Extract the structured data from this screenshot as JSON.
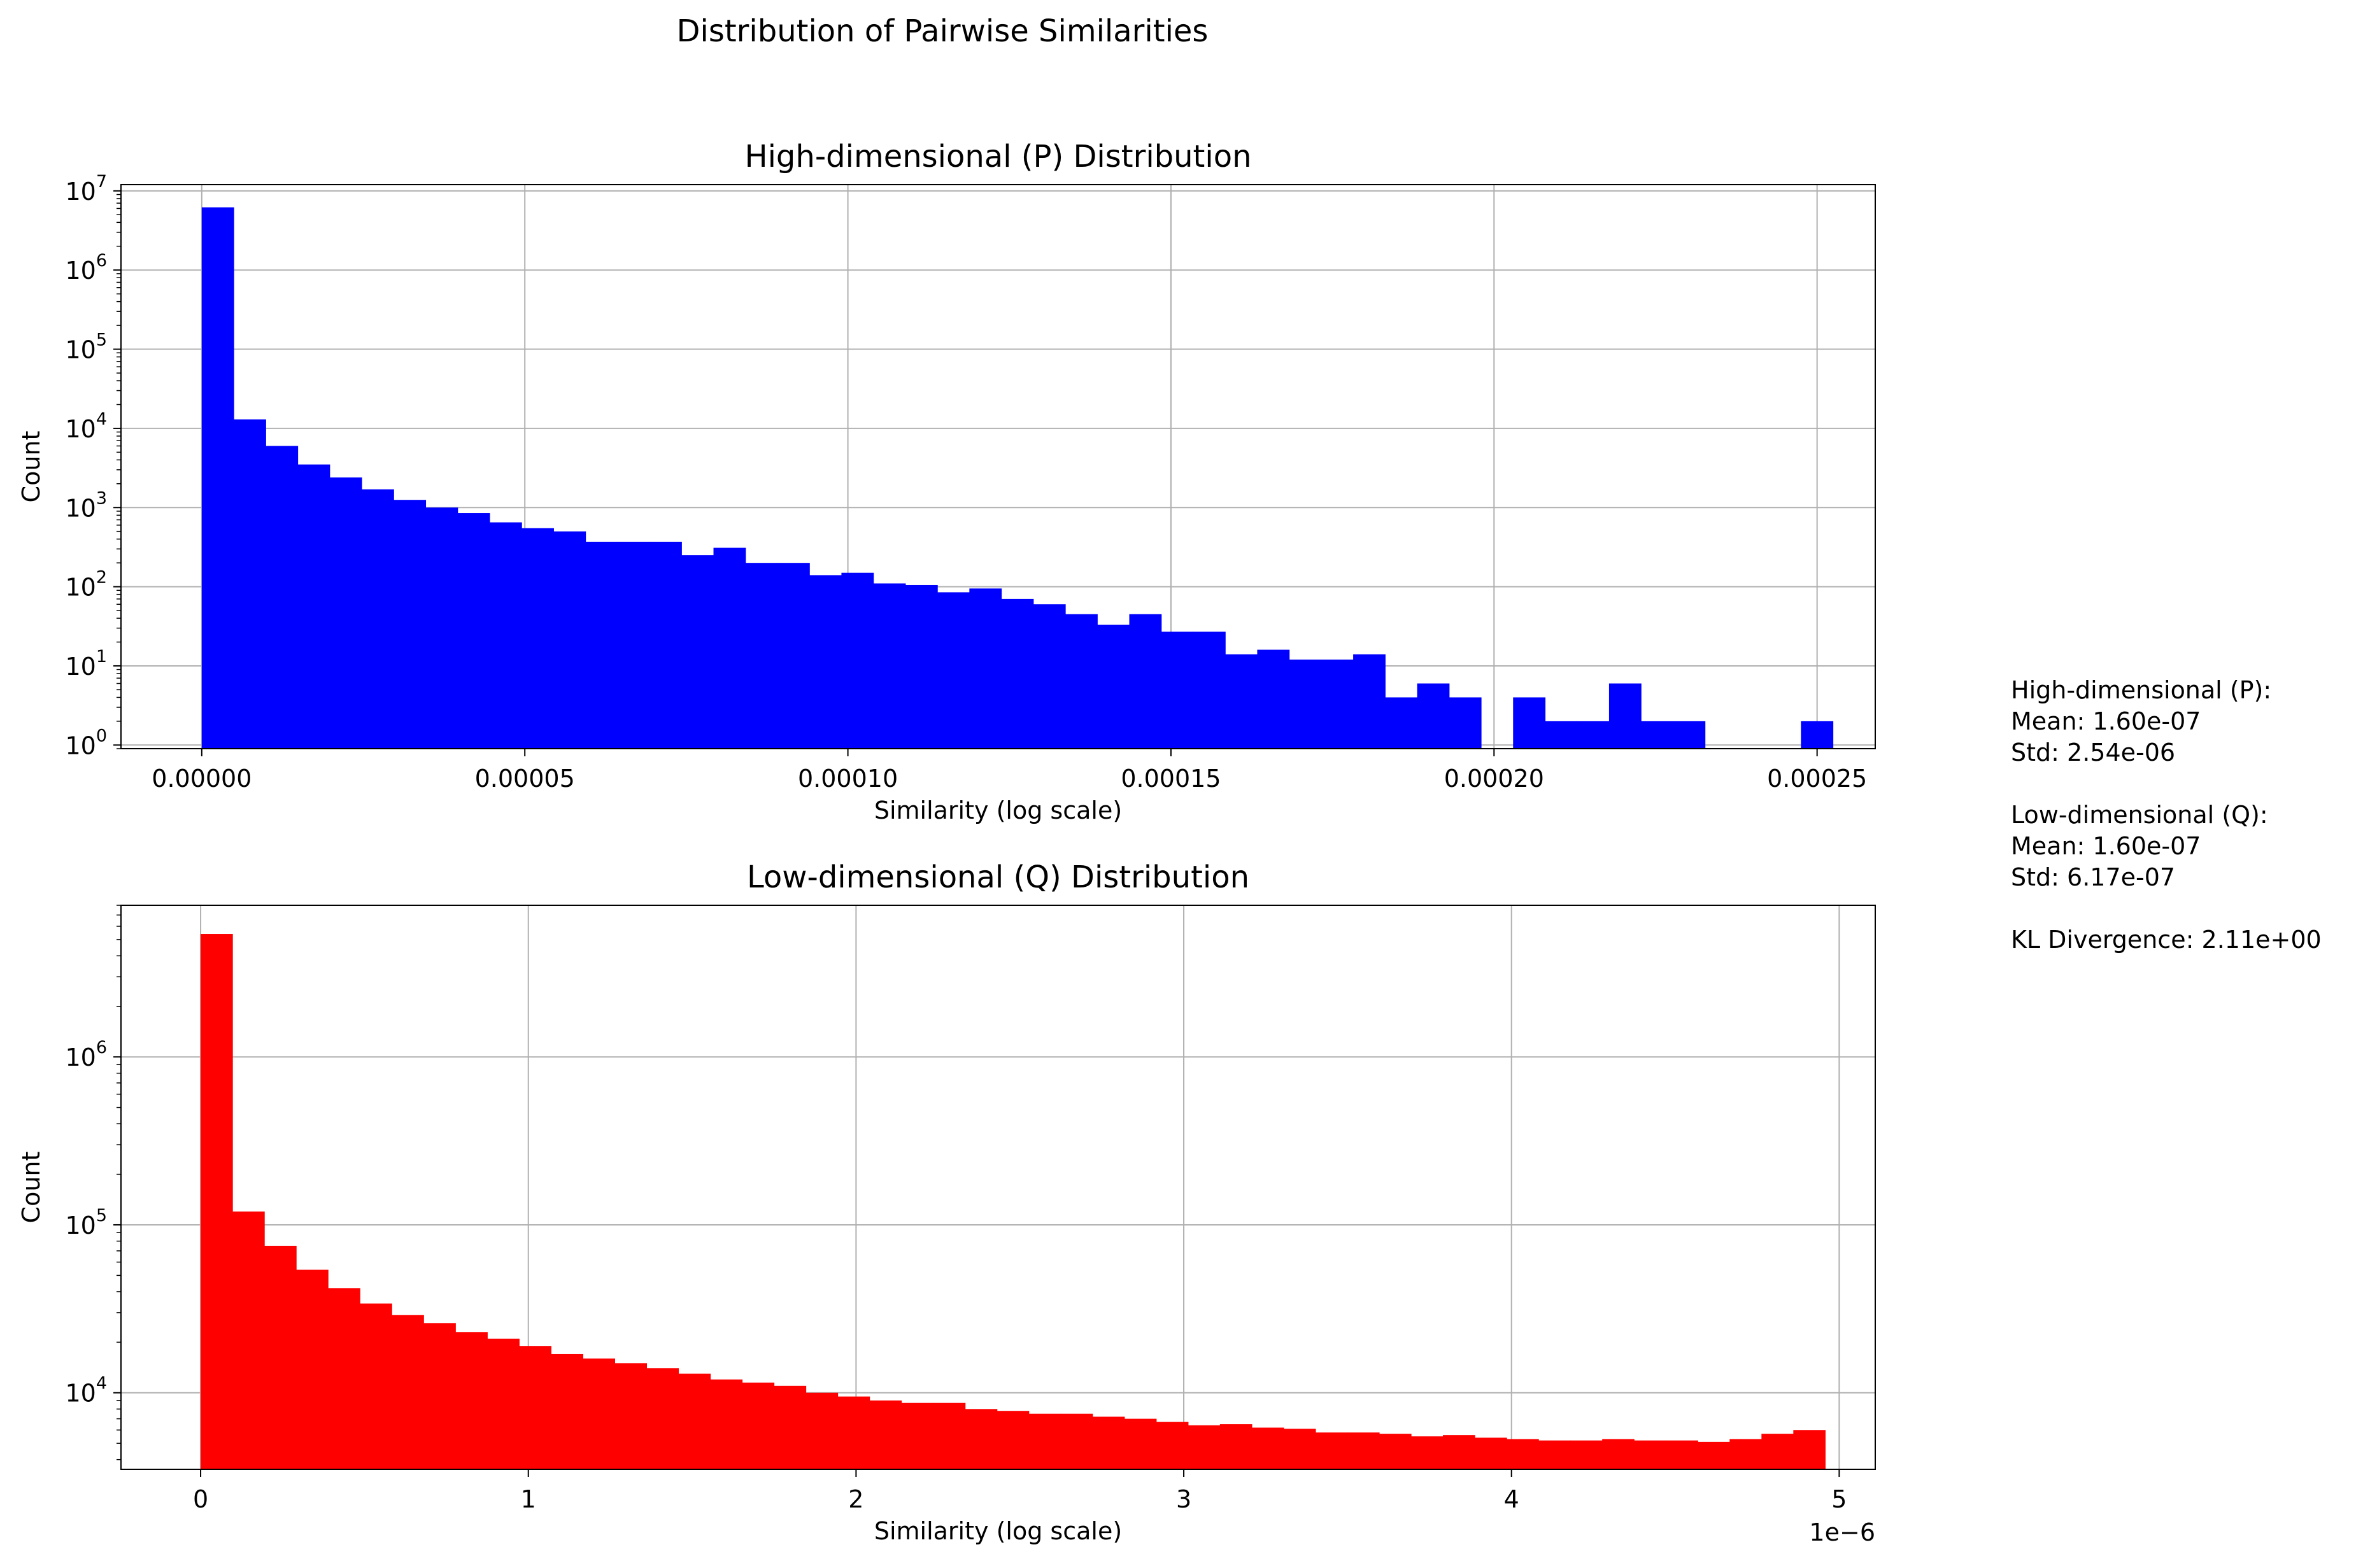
{
  "figure": {
    "suptitle": "Distribution of Pairwise Similarities"
  },
  "chart_data": [
    {
      "type": "bar",
      "subtype": "histogram",
      "title": "High-dimensional (P) Distribution",
      "xlabel": "Similarity (log scale)",
      "ylabel": "Count",
      "yscale": "log",
      "grid": true,
      "color": "#0000ff",
      "xlim": [
        -1.25e-05,
        0.000259
      ],
      "ylim": [
        0.9,
        12000000
      ],
      "bin_start": 0.0,
      "bin_width": 4.95e-06,
      "counts": [
        6200000,
        13000,
        6000,
        3500,
        2400,
        1700,
        1250,
        1000,
        850,
        650,
        550,
        500,
        370,
        370,
        370,
        250,
        310,
        200,
        200,
        140,
        150,
        110,
        105,
        85,
        95,
        70,
        60,
        45,
        33,
        45,
        27,
        27,
        14,
        16,
        12,
        12,
        14,
        4,
        6,
        4,
        0,
        4,
        2,
        2,
        6,
        2,
        2,
        0,
        0,
        0,
        2
      ],
      "x_ticks": [
        0,
        5e-05,
        0.0001,
        0.00015,
        0.0002,
        0.00025
      ],
      "x_tick_labels": [
        "0.00000",
        "0.00005",
        "0.00010",
        "0.00015",
        "0.00020",
        "0.00025"
      ],
      "y_ticks": [
        1,
        10,
        100,
        1000,
        10000,
        100000,
        1000000,
        10000000
      ],
      "y_tick_bases": [
        "10",
        "10",
        "10",
        "10",
        "10",
        "10",
        "10",
        "10"
      ],
      "y_tick_exps": [
        "0",
        "1",
        "2",
        "3",
        "4",
        "5",
        "6",
        "7"
      ]
    },
    {
      "type": "bar",
      "subtype": "histogram",
      "title": "Low-dimensional (Q) Distribution",
      "xlabel": "Similarity (log scale)",
      "ylabel": "Count",
      "yscale": "log",
      "grid": true,
      "color": "#ff0000",
      "x_offset_label": "1e−6",
      "xlim": [
        -2.43e-07,
        5.11e-06
      ],
      "ylim": [
        3500,
        8000000
      ],
      "bin_start": 0.0,
      "bin_width": 9.72e-08,
      "counts": [
        5400000,
        120000,
        75000,
        54000,
        42000,
        34000,
        29000,
        26000,
        23000,
        21000,
        19000,
        17000,
        16000,
        15000,
        14000,
        13000,
        12000,
        11500,
        11000,
        10000,
        9500,
        9000,
        8700,
        8700,
        8000,
        7800,
        7500,
        7500,
        7200,
        7000,
        6700,
        6400,
        6500,
        6200,
        6100,
        5800,
        5800,
        5700,
        5500,
        5600,
        5400,
        5300,
        5200,
        5200,
        5300,
        5200,
        5200,
        5100,
        5300,
        5700,
        6000
      ],
      "x_ticks": [
        0,
        1e-06,
        2e-06,
        3e-06,
        4e-06,
        5e-06
      ],
      "x_tick_labels": [
        "0",
        "1",
        "2",
        "3",
        "4",
        "5"
      ],
      "y_ticks": [
        10000,
        100000,
        1000000
      ],
      "y_tick_bases": [
        "10",
        "10",
        "10"
      ],
      "y_tick_exps": [
        "4",
        "5",
        "6"
      ]
    }
  ],
  "stats": {
    "lines": [
      "High-dimensional (P):",
      "Mean: 1.60e-07",
      "Std: 2.54e-06",
      "",
      "Low-dimensional (Q):",
      "Mean: 1.60e-07",
      "Std: 6.17e-07",
      "",
      "KL Divergence: 2.11e+00"
    ]
  }
}
